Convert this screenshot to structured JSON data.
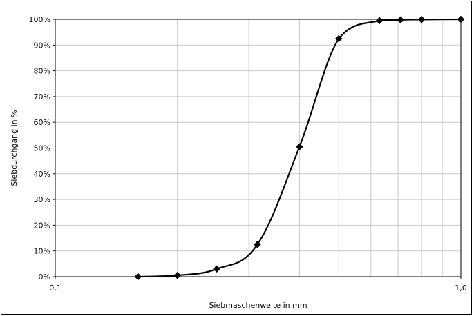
{
  "chart_data": {
    "type": "line",
    "title": "",
    "xlabel": "Siebmaschenweite in mm",
    "ylabel": "Siebdurchgang in %",
    "xscale": "log",
    "xlim": [
      0.1,
      1.0
    ],
    "ylim": [
      0,
      100
    ],
    "x_tick_labels": [
      "0,1",
      "1,0"
    ],
    "y_tick_labels": [
      "0%",
      "10%",
      "20%",
      "30%",
      "40%",
      "50%",
      "60%",
      "70%",
      "80%",
      "90%",
      "100%"
    ],
    "y_ticks": [
      0,
      10,
      20,
      30,
      40,
      50,
      60,
      70,
      80,
      90,
      100
    ],
    "x_gridlines": [
      0.2,
      0.3,
      0.4,
      0.5,
      0.6,
      0.7,
      0.8,
      0.9,
      1.0
    ],
    "grid": true,
    "legend": "none",
    "line_color": "#000000",
    "marker": "diamond",
    "smooth": true,
    "series": [
      {
        "x": [
          0.16,
          0.2,
          0.25,
          0.315,
          0.4,
          0.5,
          0.63,
          0.71,
          0.8,
          1.0
        ],
        "values": [
          0,
          0.5,
          3,
          12.5,
          50.5,
          92.5,
          99.5,
          99.8,
          99.9,
          100
        ]
      }
    ]
  }
}
